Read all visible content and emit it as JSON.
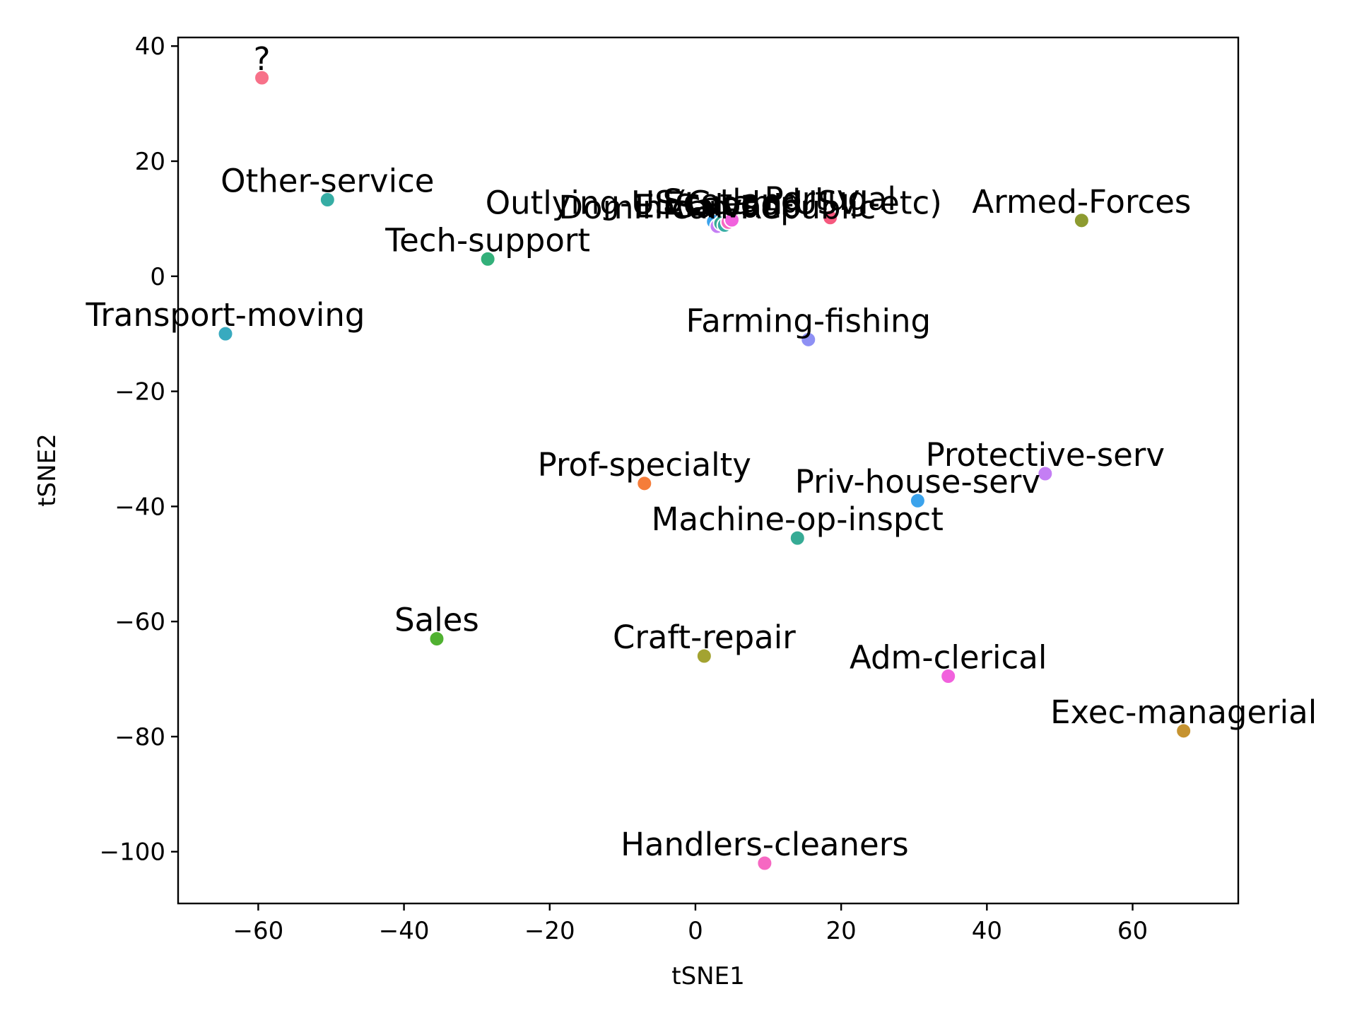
{
  "chart_data": {
    "type": "scatter",
    "title": "",
    "xlabel": "tSNE1",
    "ylabel": "tSNE2",
    "xlim": [
      -71,
      74.5
    ],
    "ylim": [
      -109,
      41.5
    ],
    "xticks": [
      -60,
      -40,
      -20,
      0,
      20,
      40,
      60
    ],
    "yticks": [
      40,
      20,
      0,
      -20,
      -40,
      -60,
      -80,
      -100
    ],
    "xtick_labels": [
      "−60",
      "−40",
      "−20",
      "0",
      "20",
      "40",
      "60"
    ],
    "ytick_labels": [
      "40",
      "20",
      "0",
      "−20",
      "−40",
      "−60",
      "−80",
      "−100"
    ],
    "grid": false,
    "legend": "none",
    "points": [
      {
        "label": "?",
        "x": -59.5,
        "y": 34.5,
        "color": "#f77189"
      },
      {
        "label": "Other-service",
        "x": -50.5,
        "y": 13.3,
        "color": "#36ada4"
      },
      {
        "label": "Tech-support",
        "x": -28.5,
        "y": 3.0,
        "color": "#33b07a"
      },
      {
        "label": "Transport-moving",
        "x": -64.5,
        "y": -10.0,
        "color": "#38aabf"
      },
      {
        "label": "Farming-fishing",
        "x": 15.5,
        "y": -11.0,
        "color": "#8e90f4"
      },
      {
        "label": "Armed-Forces",
        "x": 53.0,
        "y": 9.7,
        "color": "#8d9b30"
      },
      {
        "label": "Prof-specialty",
        "x": -7.0,
        "y": -36.0,
        "color": "#f57d3a"
      },
      {
        "label": "Priv-house-serv",
        "x": 30.5,
        "y": -39.0,
        "color": "#3ba3ec"
      },
      {
        "label": "Protective-serv",
        "x": 48.0,
        "y": -34.3,
        "color": "#c47ef4"
      },
      {
        "label": "Machine-op-inspct",
        "x": 14.0,
        "y": -45.5,
        "color": "#36ab95"
      },
      {
        "label": "Sales",
        "x": -35.5,
        "y": -63.0,
        "color": "#50b131"
      },
      {
        "label": "Craft-repair",
        "x": 1.2,
        "y": -66.0,
        "color": "#a3a331"
      },
      {
        "label": "Adm-clerical",
        "x": 34.7,
        "y": -69.5,
        "color": "#f161dd"
      },
      {
        "label": "Exec-managerial",
        "x": 67.0,
        "y": -79.0,
        "color": "#c69330"
      },
      {
        "label": "Handlers-cleaners",
        "x": 9.5,
        "y": -102.0,
        "color": "#f668c2"
      },
      {
        "label": "Outlying-US(Guam-USVI-etc)",
        "x": 2.5,
        "y": 9.5,
        "color": "#3ba3ec"
      },
      {
        "label": "Dominican-Republic",
        "x": 3.0,
        "y": 8.7,
        "color": "#c47ef4"
      },
      {
        "label": "Laos",
        "x": 3.5,
        "y": 9.2,
        "color": "#36ab95"
      },
      {
        "label": "El-Salvador",
        "x": 4.0,
        "y": 8.9,
        "color": "#36ada4"
      },
      {
        "label": "Ecuador",
        "x": 4.5,
        "y": 9.4,
        "color": "#f668c2"
      },
      {
        "label": "Scotland",
        "x": 5.0,
        "y": 9.8,
        "color": "#f161dd"
      },
      {
        "label": "Portugal",
        "x": 18.5,
        "y": 10.2,
        "color": "#f5597e"
      }
    ]
  }
}
